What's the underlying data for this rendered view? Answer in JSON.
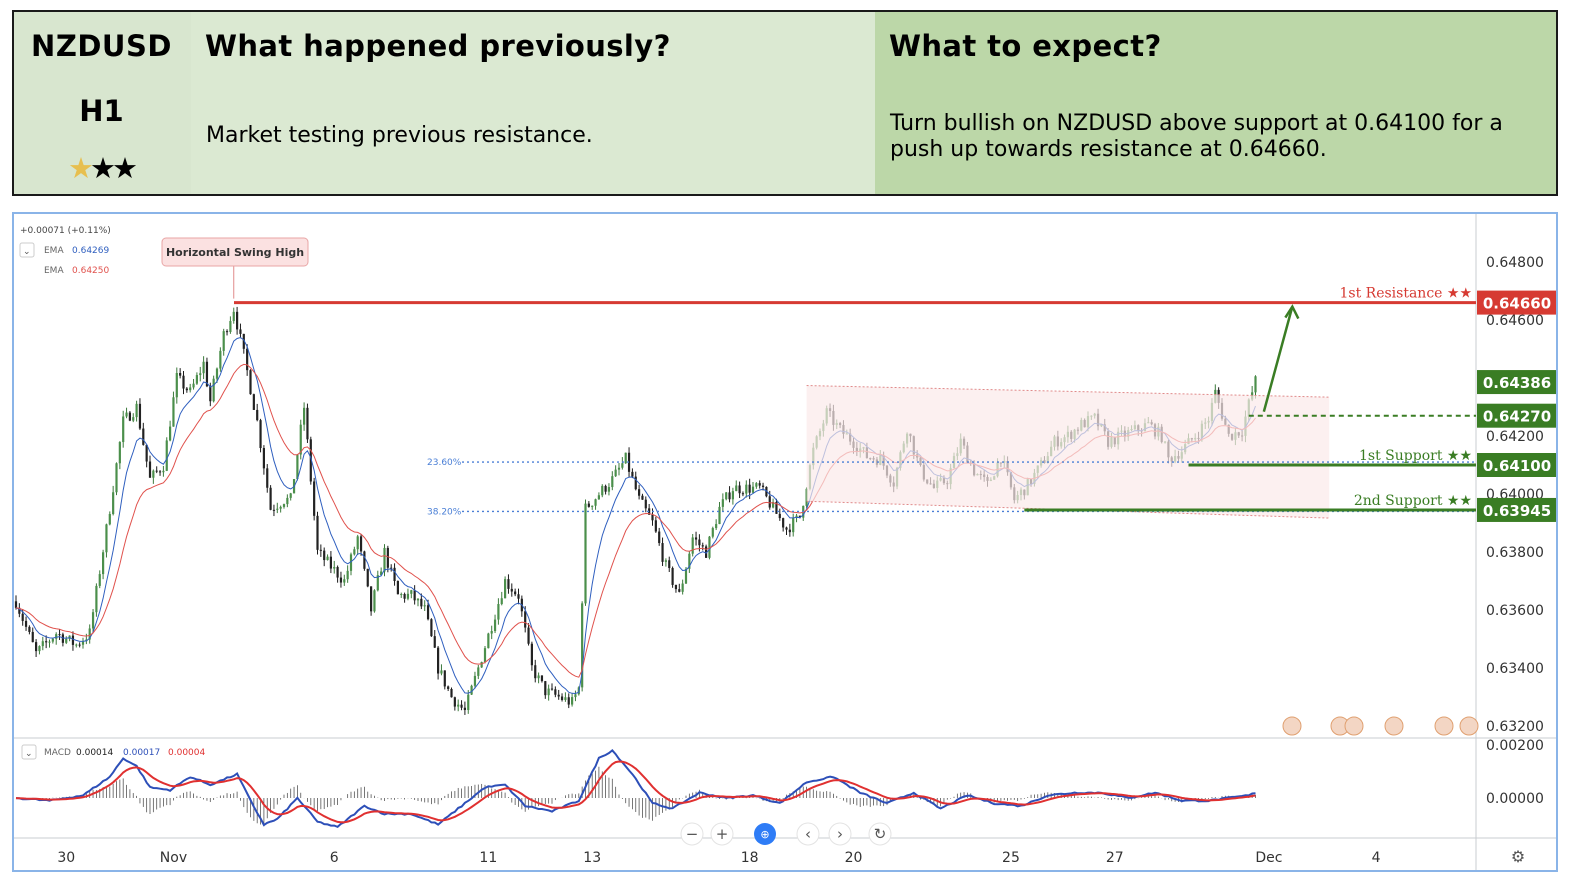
{
  "header": {
    "pair": "NZDUSD",
    "timeframe": "H1",
    "rating": {
      "filled": 1,
      "total": 3
    },
    "col1_title": "What happened previously?",
    "col2_title": "What to expect?",
    "col1_text": "Market testing previous resistance.",
    "col2_text": "Turn bullish on NZDUSD above support at 0.64100 for a push up towards resistance at 0.64660."
  },
  "legend": {
    "change": "+0.00071 (+0.11%)",
    "ema_label": "EMA",
    "ema1_value": "0.64269",
    "ema2_value": "0.64250",
    "macd_label": "MACD",
    "macd_values": [
      "0.00014",
      "0.00017",
      "0.00004"
    ]
  },
  "annotations": {
    "swing_high": "Horizontal Swing High",
    "fib_236": "23.60%",
    "fib_382": "38.20%",
    "resistance1": "1st Resistance ★★",
    "support1": "1st Support ★★",
    "support2": "2nd Support ★★"
  },
  "colors": {
    "up": "#3b7a3b",
    "down": "#1a1a1a",
    "ema_fast": "#2f5fbf",
    "ema_slow": "#e0524d",
    "resistance": "#d63a32",
    "support": "#3a7d24",
    "fib": "#4a7fd6",
    "macd": "#2d4fb8",
    "signal": "#e03030"
  },
  "chart_data": {
    "type": "candlestick",
    "symbol": "NZDUSD",
    "timeframe": "H1",
    "y_axis": {
      "ticks": [
        0.648,
        0.646,
        0.642,
        0.64,
        0.638,
        0.636,
        0.634,
        0.632
      ],
      "tick_labels": [
        "0.64800",
        "0.64600",
        "0.64200",
        "0.64000",
        "0.63800",
        "0.63600",
        "0.63400",
        "0.63200"
      ],
      "range": [
        0.632,
        0.649
      ]
    },
    "x_axis": {
      "tick_labels": [
        "30",
        "Nov",
        "6",
        "11",
        "13",
        "18",
        "20",
        "25",
        "27",
        "Dec",
        "4"
      ],
      "tick_bar_index": [
        15,
        47,
        95,
        141,
        172,
        219,
        250,
        297,
        328,
        374,
        406
      ]
    },
    "price_tags": [
      {
        "label": "0.64660",
        "value": 0.6466,
        "color": "#d63a32"
      },
      {
        "label": "0.64386",
        "value": 0.64386,
        "color": "#3a7d24"
      },
      {
        "label": "0.64270",
        "value": 0.6427,
        "color": "#3a7d24"
      },
      {
        "label": "0.64100",
        "value": 0.641,
        "color": "#3a7d24"
      },
      {
        "label": "0.63945",
        "value": 0.63945,
        "color": "#3a7d24"
      }
    ],
    "levels": {
      "resistance_1": 0.6466,
      "support_1": 0.641,
      "support_2": 0.63945,
      "entry_dashed": 0.6427,
      "fib_236": 0.6411,
      "fib_382": 0.6394
    },
    "close_path": [
      [
        0,
        0.6363
      ],
      [
        6,
        0.6345
      ],
      [
        12,
        0.6352
      ],
      [
        18,
        0.6348
      ],
      [
        22,
        0.6352
      ],
      [
        28,
        0.6395
      ],
      [
        32,
        0.6425
      ],
      [
        36,
        0.643
      ],
      [
        40,
        0.6405
      ],
      [
        44,
        0.641
      ],
      [
        48,
        0.644
      ],
      [
        52,
        0.6435
      ],
      [
        56,
        0.6445
      ],
      [
        58,
        0.6432
      ],
      [
        62,
        0.6455
      ],
      [
        65,
        0.6464
      ],
      [
        68,
        0.6448
      ],
      [
        72,
        0.6425
      ],
      [
        76,
        0.6395
      ],
      [
        80,
        0.6398
      ],
      [
        82,
        0.6398
      ],
      [
        86,
        0.643
      ],
      [
        90,
        0.638
      ],
      [
        94,
        0.6375
      ],
      [
        98,
        0.637
      ],
      [
        102,
        0.6385
      ],
      [
        106,
        0.636
      ],
      [
        110,
        0.638
      ],
      [
        114,
        0.6365
      ],
      [
        118,
        0.6365
      ],
      [
        122,
        0.636
      ],
      [
        126,
        0.634
      ],
      [
        130,
        0.633
      ],
      [
        134,
        0.6325
      ],
      [
        138,
        0.634
      ],
      [
        142,
        0.6355
      ],
      [
        146,
        0.637
      ],
      [
        150,
        0.6365
      ],
      [
        154,
        0.634
      ],
      [
        158,
        0.6332
      ],
      [
        162,
        0.633
      ],
      [
        166,
        0.6328
      ],
      [
        168,
        0.6333
      ],
      [
        170,
        0.6395
      ],
      [
        174,
        0.64
      ],
      [
        178,
        0.6405
      ],
      [
        182,
        0.6412
      ],
      [
        186,
        0.6398
      ],
      [
        190,
        0.639
      ],
      [
        194,
        0.6375
      ],
      [
        198,
        0.6365
      ],
      [
        202,
        0.6385
      ],
      [
        206,
        0.638
      ],
      [
        210,
        0.6395
      ],
      [
        214,
        0.6402
      ],
      [
        218,
        0.6402
      ],
      [
        222,
        0.6402
      ],
      [
        226,
        0.6395
      ],
      [
        230,
        0.6388
      ],
      [
        234,
        0.6392
      ],
      [
        238,
        0.6415
      ],
      [
        242,
        0.6428
      ],
      [
        246,
        0.6422
      ],
      [
        250,
        0.6418
      ],
      [
        254,
        0.6413
      ],
      [
        258,
        0.6412
      ],
      [
        262,
        0.6404
      ],
      [
        266,
        0.6423
      ],
      [
        270,
        0.6408
      ],
      [
        274,
        0.6402
      ],
      [
        278,
        0.6405
      ],
      [
        282,
        0.6418
      ],
      [
        286,
        0.6408
      ],
      [
        290,
        0.6403
      ],
      [
        294,
        0.6413
      ],
      [
        298,
        0.6398
      ],
      [
        302,
        0.6403
      ],
      [
        306,
        0.641
      ],
      [
        310,
        0.6418
      ],
      [
        314,
        0.642
      ],
      [
        318,
        0.6424
      ],
      [
        322,
        0.6426
      ],
      [
        326,
        0.6418
      ],
      [
        330,
        0.642
      ],
      [
        334,
        0.6422
      ],
      [
        338,
        0.6424
      ],
      [
        342,
        0.642
      ],
      [
        344,
        0.6412
      ],
      [
        348,
        0.6415
      ],
      [
        352,
        0.642
      ],
      [
        356,
        0.6426
      ],
      [
        358,
        0.6435
      ],
      [
        362,
        0.642
      ],
      [
        366,
        0.6422
      ],
      [
        368,
        0.6431
      ],
      [
        370,
        0.6439
      ]
    ],
    "macd_path": [
      [
        0,
        0.0
      ],
      [
        10,
        -0.0001
      ],
      [
        20,
        0.0001
      ],
      [
        28,
        0.0008
      ],
      [
        32,
        0.0015
      ],
      [
        36,
        0.0012
      ],
      [
        40,
        0.0004
      ],
      [
        46,
        0.0003
      ],
      [
        52,
        0.0008
      ],
      [
        58,
        0.0005
      ],
      [
        66,
        0.0009
      ],
      [
        70,
        -0.0001
      ],
      [
        74,
        -0.001
      ],
      [
        78,
        -0.0008
      ],
      [
        84,
        0.0
      ],
      [
        90,
        -0.0009
      ],
      [
        96,
        -0.0011
      ],
      [
        104,
        -0.0003
      ],
      [
        110,
        -0.0006
      ],
      [
        118,
        -0.0006
      ],
      [
        126,
        -0.001
      ],
      [
        132,
        -0.0004
      ],
      [
        140,
        0.0004
      ],
      [
        146,
        0.0005
      ],
      [
        152,
        -0.0003
      ],
      [
        160,
        -0.0005
      ],
      [
        168,
        -0.0001
      ],
      [
        174,
        0.0015
      ],
      [
        178,
        0.0018
      ],
      [
        184,
        0.0009
      ],
      [
        190,
        -0.0002
      ],
      [
        196,
        -0.0004
      ],
      [
        204,
        0.0002
      ],
      [
        212,
        0.0
      ],
      [
        220,
        0.0001
      ],
      [
        228,
        -0.0002
      ],
      [
        236,
        0.0006
      ],
      [
        244,
        0.0008
      ],
      [
        252,
        0.0002
      ],
      [
        260,
        -0.0002
      ],
      [
        268,
        0.0002
      ],
      [
        276,
        -0.0004
      ],
      [
        284,
        0.0001
      ],
      [
        292,
        -0.0002
      ],
      [
        300,
        -0.0003
      ],
      [
        308,
        0.0001
      ],
      [
        316,
        0.0002
      ],
      [
        324,
        0.0002
      ],
      [
        332,
        0.0
      ],
      [
        340,
        0.0002
      ],
      [
        348,
        -0.0001
      ],
      [
        356,
        -0.0001
      ],
      [
        362,
        0.0
      ],
      [
        368,
        0.0001
      ],
      [
        370,
        0.0002
      ]
    ]
  }
}
